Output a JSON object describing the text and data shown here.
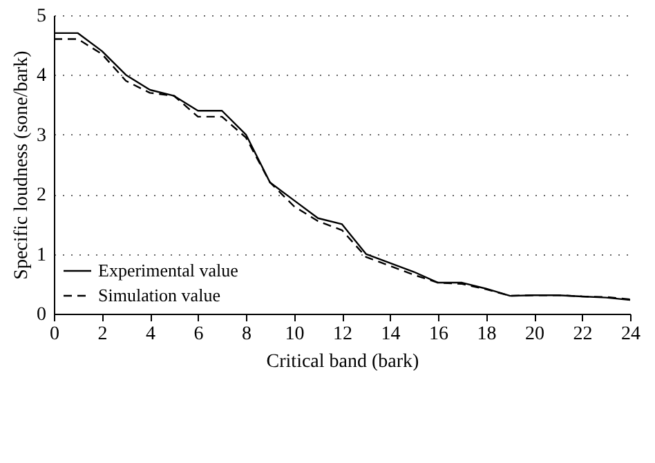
{
  "chart_data": {
    "type": "line",
    "xlabel": "Critical band (bark)",
    "ylabel": "Specific loudness (sone/bark)",
    "x": [
      0,
      1,
      2,
      3,
      4,
      5,
      6,
      7,
      8,
      9,
      10,
      11,
      12,
      13,
      14,
      15,
      16,
      17,
      18,
      19,
      20,
      21,
      22,
      23,
      24
    ],
    "series": [
      {
        "name": "Experimental value",
        "color": "#000000",
        "line_style": "solid",
        "values": [
          4.7,
          4.7,
          4.4,
          4.0,
          3.75,
          3.65,
          3.4,
          3.4,
          3.0,
          2.2,
          1.9,
          1.6,
          1.5,
          1.0,
          0.85,
          0.7,
          0.52,
          0.52,
          0.42,
          0.3,
          0.31,
          0.31,
          0.29,
          0.27,
          0.23
        ]
      },
      {
        "name": "Simulation value",
        "color": "#000000",
        "line_style": "dashed",
        "values": [
          4.6,
          4.6,
          4.35,
          3.9,
          3.7,
          3.65,
          3.3,
          3.3,
          2.95,
          2.2,
          1.8,
          1.55,
          1.4,
          0.95,
          0.8,
          0.65,
          0.52,
          0.5,
          0.41,
          0.3,
          0.31,
          0.31,
          0.29,
          0.28,
          0.24
        ]
      }
    ],
    "xlim": [
      0,
      24
    ],
    "xticks": [
      0,
      2,
      4,
      6,
      8,
      10,
      12,
      14,
      16,
      18,
      20,
      22,
      24
    ],
    "ylim": [
      0,
      5
    ],
    "yticks": [
      0,
      1,
      2,
      3,
      4,
      5
    ],
    "grid": "y",
    "legend": "bottom left"
  }
}
